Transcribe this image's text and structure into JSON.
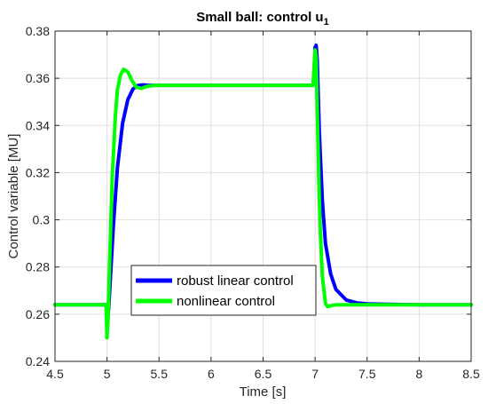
{
  "chart_data": {
    "type": "line",
    "title": "Small ball: control u",
    "title_subscript": "1",
    "xlabel": "Time [s]",
    "ylabel": "Control variable [MU]",
    "xlim": [
      4.5,
      8.5
    ],
    "ylim": [
      0.24,
      0.38
    ],
    "xticks": [
      4.5,
      5,
      5.5,
      6,
      6.5,
      7,
      7.5,
      8,
      8.5
    ],
    "yticks": [
      0.24,
      0.26,
      0.28,
      0.3,
      0.32,
      0.34,
      0.36,
      0.38
    ],
    "xtick_labels": [
      "4.5",
      "5",
      "5.5",
      "6",
      "6.5",
      "7",
      "7.5",
      "8",
      "8.5"
    ],
    "ytick_labels": [
      "0.24",
      "0.26",
      "0.28",
      "0.3",
      "0.32",
      "0.34",
      "0.36",
      "0.38"
    ],
    "grid": true,
    "legend_position": "bottom-center",
    "series": [
      {
        "name": "robust linear control",
        "color": "#0000ff",
        "x": [
          4.5,
          4.99,
          4.995,
          5.0,
          5.015,
          5.03,
          5.06,
          5.1,
          5.15,
          5.2,
          5.25,
          5.3,
          5.35,
          5.4,
          5.6,
          6.0,
          6.5,
          6.98,
          6.995,
          7.0,
          7.01,
          7.02,
          7.04,
          7.07,
          7.1,
          7.15,
          7.2,
          7.3,
          7.4,
          7.5,
          7.7,
          8.0,
          8.5
        ],
        "y": [
          0.264,
          0.264,
          0.262,
          0.257,
          0.262,
          0.273,
          0.297,
          0.322,
          0.341,
          0.351,
          0.3555,
          0.357,
          0.3572,
          0.357,
          0.357,
          0.357,
          0.357,
          0.357,
          0.362,
          0.373,
          0.374,
          0.368,
          0.338,
          0.308,
          0.29,
          0.277,
          0.2705,
          0.266,
          0.2648,
          0.2644,
          0.2642,
          0.264,
          0.264
        ]
      },
      {
        "name": "nonlinear control",
        "color": "#00ff00",
        "x": [
          4.5,
          4.99,
          4.995,
          5.0,
          5.01,
          5.025,
          5.05,
          5.08,
          5.1,
          5.13,
          5.16,
          5.2,
          5.24,
          5.28,
          5.33,
          5.38,
          5.45,
          5.6,
          6.0,
          6.5,
          6.98,
          6.99,
          7.0,
          7.01,
          7.02,
          7.035,
          7.05,
          7.07,
          7.1,
          7.12,
          7.16,
          7.2,
          7.3,
          7.5,
          8.0,
          8.5
        ],
        "y": [
          0.264,
          0.264,
          0.258,
          0.25,
          0.258,
          0.283,
          0.318,
          0.344,
          0.355,
          0.3615,
          0.3638,
          0.3627,
          0.359,
          0.3562,
          0.3557,
          0.3565,
          0.357,
          0.357,
          0.357,
          0.357,
          0.357,
          0.365,
          0.372,
          0.369,
          0.348,
          0.318,
          0.295,
          0.276,
          0.2645,
          0.2632,
          0.2637,
          0.264,
          0.264,
          0.264,
          0.264,
          0.264
        ]
      }
    ]
  }
}
